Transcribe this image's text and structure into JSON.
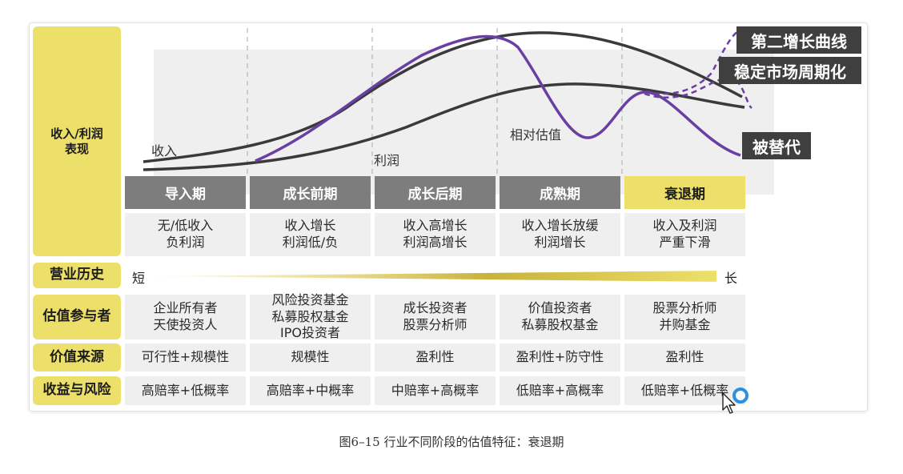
{
  "row_labels": {
    "revenue_profit": "收入/利润\n表现",
    "history": "营业历史",
    "participants": "估值参与者",
    "value_source": "价值来源",
    "risk_return": "收益与风险"
  },
  "curve_labels": {
    "revenue": "收入",
    "profit": "利润",
    "relative_valuation": "相对估值"
  },
  "outcome_labels": {
    "second_curve": "第二增长曲线",
    "stable_cycle": "稳定市场周期化",
    "replaced": "被替代"
  },
  "stages": [
    {
      "name": "导入期",
      "performance": "无/低收入\n负利润",
      "participants": "企业所有者\n天使投资人",
      "value_source": "可行性+规模性",
      "risk_return": "高赔率+低概率"
    },
    {
      "name": "成长前期",
      "performance": "收入增长\n利润低/负",
      "participants": "风险投资基金\n私募股权基金\nIPO投资者",
      "value_source": "规模性",
      "risk_return": "高赔率+中概率"
    },
    {
      "name": "成长后期",
      "performance": "收入高增长\n利润高增长",
      "participants": "成长投资者\n股票分析师",
      "value_source": "盈利性",
      "risk_return": "中赔率+高概率"
    },
    {
      "name": "成熟期",
      "performance": "收入增长放缓\n利润增长",
      "participants": "价值投资者\n私募股权基金",
      "value_source": "盈利性+防守性",
      "risk_return": "低赔率+高概率"
    },
    {
      "name": "衰退期",
      "performance": "收入及利润\n严重下滑",
      "participants": "股票分析师\n并购基金",
      "value_source": "盈利性",
      "risk_return": "低赔率+低概率"
    }
  ],
  "active_stage_index": 4,
  "history": {
    "short": "短",
    "long": "长"
  },
  "colors": {
    "accent_yellow": "#ede06a",
    "header_gray": "#7d7d7d",
    "cell_bg": "#efefef",
    "curve_dark": "#3a3a3a",
    "curve_purple": "#6a3fa3",
    "callout_bg": "#3f3f3f",
    "cursor_blue": "#2e8fe0"
  },
  "caption": "图6–15 行业不同阶段的估值特征：衰退期"
}
